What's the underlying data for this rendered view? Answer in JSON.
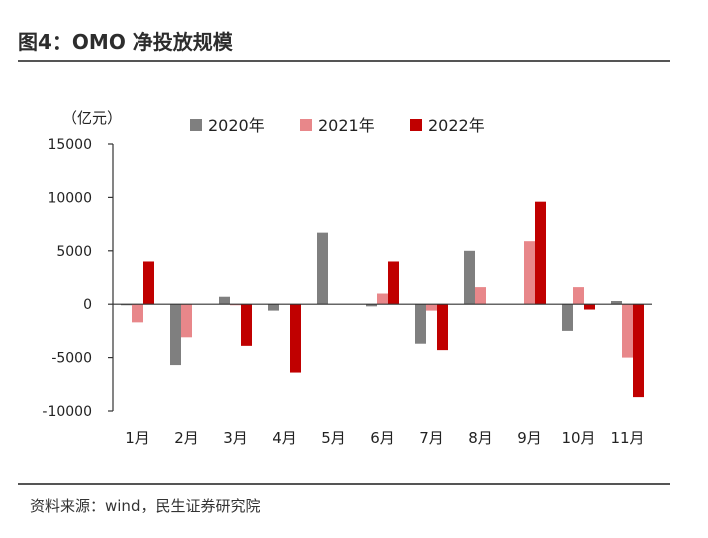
{
  "header": {
    "title": "图4：OMO 净投放规模"
  },
  "footer": {
    "source": "资料来源：wind，民生证券研究院"
  },
  "colors": {
    "2020年": "#7f7f7f",
    "2021年": "#e8878a",
    "2022年": "#c00000"
  },
  "chart_data": {
    "type": "bar",
    "title": "OMO 净投放规模",
    "ylabel": "（亿元）",
    "ylim": [
      -10000,
      15000
    ],
    "yticks": [
      15000,
      10000,
      5000,
      0,
      -5000,
      -10000
    ],
    "legend_position": "top",
    "categories": [
      "1月",
      "2月",
      "3月",
      "4月",
      "5月",
      "6月",
      "7月",
      "8月",
      "9月",
      "10月",
      "11月"
    ],
    "series": [
      {
        "name": "2020年",
        "values": [
          -100,
          -5700,
          700,
          -600,
          6700,
          -200,
          -3700,
          5000,
          0,
          -2500,
          300
        ]
      },
      {
        "name": "2021年",
        "values": [
          -1700,
          -3100,
          -100,
          0,
          0,
          1000,
          -600,
          1600,
          5900,
          1600,
          -5000
        ]
      },
      {
        "name": "2022年",
        "values": [
          4000,
          0,
          -3900,
          -6400,
          0,
          4000,
          -4300,
          0,
          9600,
          -500,
          -8700
        ]
      }
    ]
  }
}
